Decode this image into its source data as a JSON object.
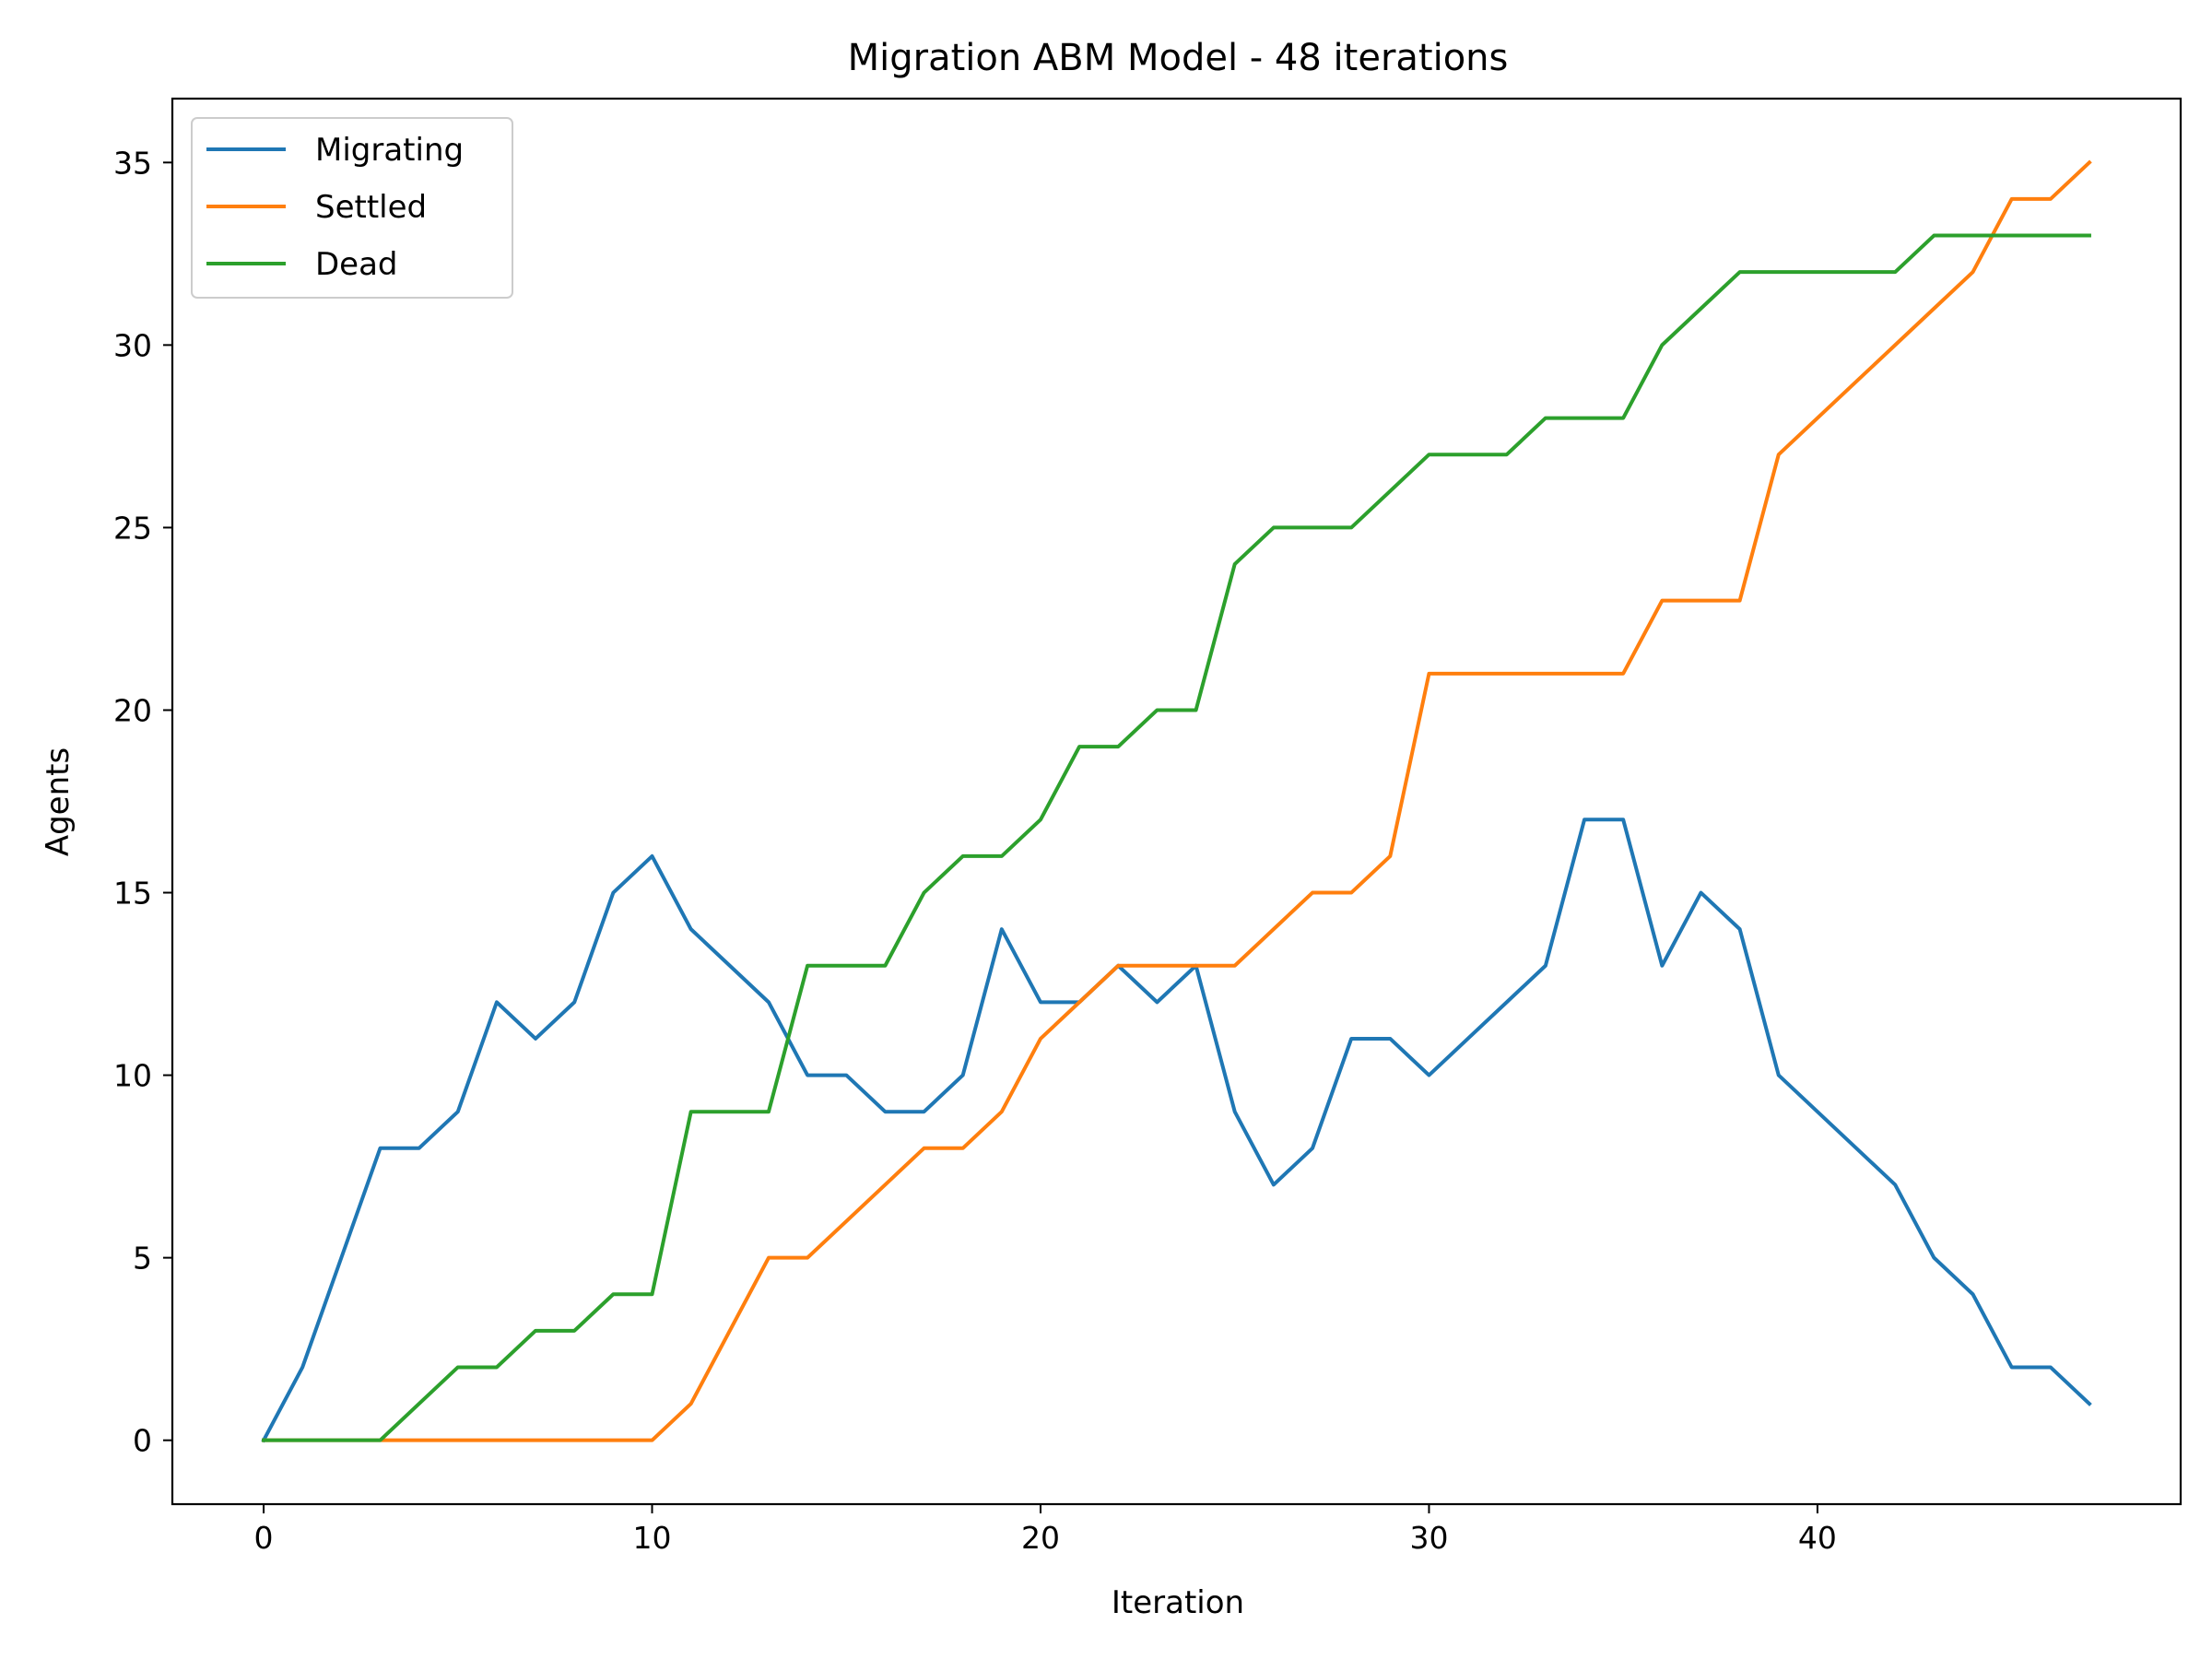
{
  "chart_data": {
    "type": "line",
    "title": "Migration ABM Model - 48 iterations",
    "xlabel": "Iteration",
    "ylabel": "Agents",
    "xlim": [
      -2.35,
      49.35
    ],
    "ylim": [
      -1.75,
      36.75
    ],
    "xticks": [
      0,
      10,
      20,
      30,
      40
    ],
    "yticks": [
      0,
      5,
      10,
      15,
      20,
      25,
      30,
      35
    ],
    "grid": false,
    "legend_position": "top-left",
    "x": [
      0,
      1,
      2,
      3,
      4,
      5,
      6,
      7,
      8,
      9,
      10,
      11,
      12,
      13,
      14,
      15,
      16,
      17,
      18,
      19,
      20,
      21,
      22,
      23,
      24,
      25,
      26,
      27,
      28,
      29,
      30,
      31,
      32,
      33,
      34,
      35,
      36,
      37,
      38,
      39,
      40,
      41,
      42,
      43,
      44,
      45,
      46,
      47
    ],
    "series": [
      {
        "name": "Migrating",
        "color": "#1f77b4",
        "values": [
          0,
          2,
          5,
          8,
          8,
          9,
          12,
          11,
          12,
          15,
          16,
          14,
          13,
          12,
          10,
          10,
          9,
          9,
          10,
          14,
          12,
          12,
          13,
          12,
          13,
          9,
          7,
          8,
          11,
          11,
          10,
          11,
          12,
          13,
          17,
          17,
          13,
          15,
          14,
          10,
          9,
          8,
          7,
          5,
          4,
          2,
          2,
          1
        ]
      },
      {
        "name": "Settled",
        "color": "#ff7f0e",
        "values": [
          0,
          0,
          0,
          0,
          0,
          0,
          0,
          0,
          0,
          0,
          0,
          1,
          3,
          5,
          5,
          6,
          7,
          8,
          8,
          9,
          11,
          12,
          13,
          13,
          13,
          13,
          14,
          15,
          15,
          16,
          21,
          21,
          21,
          21,
          21,
          21,
          23,
          23,
          23,
          27,
          28,
          29,
          30,
          31,
          32,
          34,
          34,
          35
        ]
      },
      {
        "name": "Dead",
        "color": "#2ca02c",
        "values": [
          0,
          0,
          0,
          0,
          1,
          2,
          2,
          3,
          3,
          4,
          4,
          9,
          9,
          9,
          13,
          13,
          13,
          15,
          16,
          16,
          17,
          19,
          19,
          20,
          20,
          24,
          25,
          25,
          25,
          26,
          27,
          27,
          27,
          28,
          28,
          28,
          30,
          31,
          32,
          32,
          32,
          32,
          32,
          33,
          33,
          33,
          33,
          33
        ]
      }
    ]
  }
}
